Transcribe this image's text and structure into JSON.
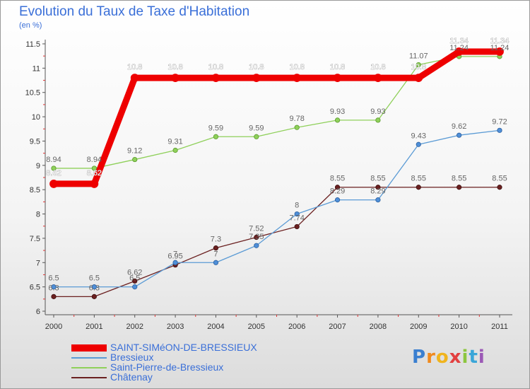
{
  "chart_data": {
    "type": "line",
    "title": "Evolution du Taux de Taxe d'Habitation",
    "subtitle": "(en %)",
    "x": [
      "2000",
      "2001",
      "2002",
      "2003",
      "2004",
      "2005",
      "2006",
      "2007",
      "2008",
      "2009",
      "2010",
      "2011"
    ],
    "ylim": [
      6,
      11.5
    ],
    "yticks": [
      "6",
      "6.5",
      "7",
      "7.5",
      "8",
      "8.5",
      "9",
      "9.5",
      "10",
      "10.5",
      "11",
      "11.5"
    ],
    "grid": false,
    "legend_position": "bottom-left",
    "series": [
      {
        "name": "SAINT-SIMéON-DE-BRESSIEUX",
        "color": "#ee0000",
        "values": [
          8.62,
          8.62,
          10.8,
          10.8,
          10.8,
          10.8,
          10.8,
          10.8,
          10.8,
          10.8,
          11.34,
          11.34
        ],
        "labels": [
          "8.62",
          "8.62",
          "10.8",
          "10.8",
          "10.8",
          "10.8",
          "10.8",
          "10.8",
          "10.8",
          "10.8",
          "11.34",
          "11.34"
        ]
      },
      {
        "name": "Bressieux",
        "color": "#5b9bd5",
        "values": [
          6.5,
          6.5,
          6.5,
          7,
          7,
          7.35,
          8,
          8.29,
          8.29,
          9.43,
          9.62,
          9.72
        ],
        "labels": [
          "6.5",
          "6.5",
          "6.5",
          "7",
          "7",
          "7.35",
          "8",
          "8.29",
          "8.29",
          "9.43",
          "9.62",
          "9.72"
        ]
      },
      {
        "name": "Saint-Pierre-de-Bressieux",
        "color": "#8fd05a",
        "values": [
          8.94,
          8.94,
          9.12,
          9.31,
          9.59,
          9.59,
          9.78,
          9.93,
          9.93,
          11.07,
          11.24,
          11.24
        ],
        "labels": [
          "8.94",
          "8.94",
          "9.12",
          "9.31",
          "9.59",
          "9.59",
          "9.78",
          "9.93",
          "9.93",
          "11.07",
          "11.24",
          "11.24"
        ]
      },
      {
        "name": "Châtenay",
        "color": "#6b2020",
        "values": [
          6.3,
          6.3,
          6.62,
          6.95,
          7.3,
          7.52,
          7.74,
          8.55,
          8.55,
          8.55,
          8.55,
          8.55
        ],
        "labels": [
          "6.3",
          "6.3",
          "6.62",
          "6.95",
          "7.3",
          "7.52",
          "7.74",
          "8.55",
          "8.55",
          "8.55",
          "8.55",
          "8.55"
        ]
      }
    ]
  },
  "logo": {
    "text": "Proxiti",
    "letter_colors": [
      "#3a7fd0",
      "#f08a1e",
      "#f0b41e",
      "#e24040",
      "#8cc63f",
      "#3aa6d8",
      "#9b59b6"
    ]
  }
}
